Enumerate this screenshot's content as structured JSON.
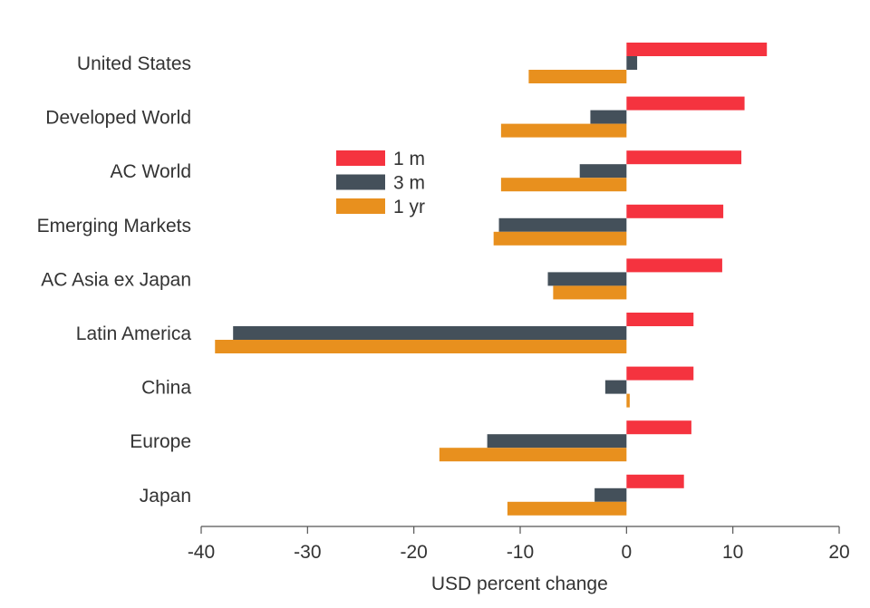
{
  "chart_data": {
    "type": "bar",
    "orientation": "horizontal",
    "categories": [
      "United States",
      "Developed World",
      "AC World",
      "Emerging Markets",
      "AC Asia ex Japan",
      "Latin America",
      "China",
      "Europe",
      "Japan"
    ],
    "series": [
      {
        "name": "1 m",
        "color": "#f5333f",
        "values": [
          13.2,
          11.1,
          10.8,
          9.1,
          9.0,
          6.3,
          6.3,
          6.1,
          5.4
        ]
      },
      {
        "name": "3 m",
        "color": "#44505a",
        "values": [
          1.0,
          -3.4,
          -4.4,
          -12.0,
          -7.4,
          -37.0,
          -2.0,
          -13.1,
          -3.0
        ]
      },
      {
        "name": "1 yr",
        "color": "#e8901e",
        "values": [
          -9.2,
          -11.8,
          -11.8,
          -12.5,
          -6.9,
          -38.7,
          0.3,
          -17.6,
          -11.2
        ]
      }
    ],
    "xlabel": "USD percent change",
    "xlim": [
      -40,
      20
    ],
    "xticks": [
      "-40",
      "-30",
      "-20",
      "-10",
      "0",
      "10",
      "20"
    ],
    "grid": false,
    "legend_position": "upper-center"
  }
}
